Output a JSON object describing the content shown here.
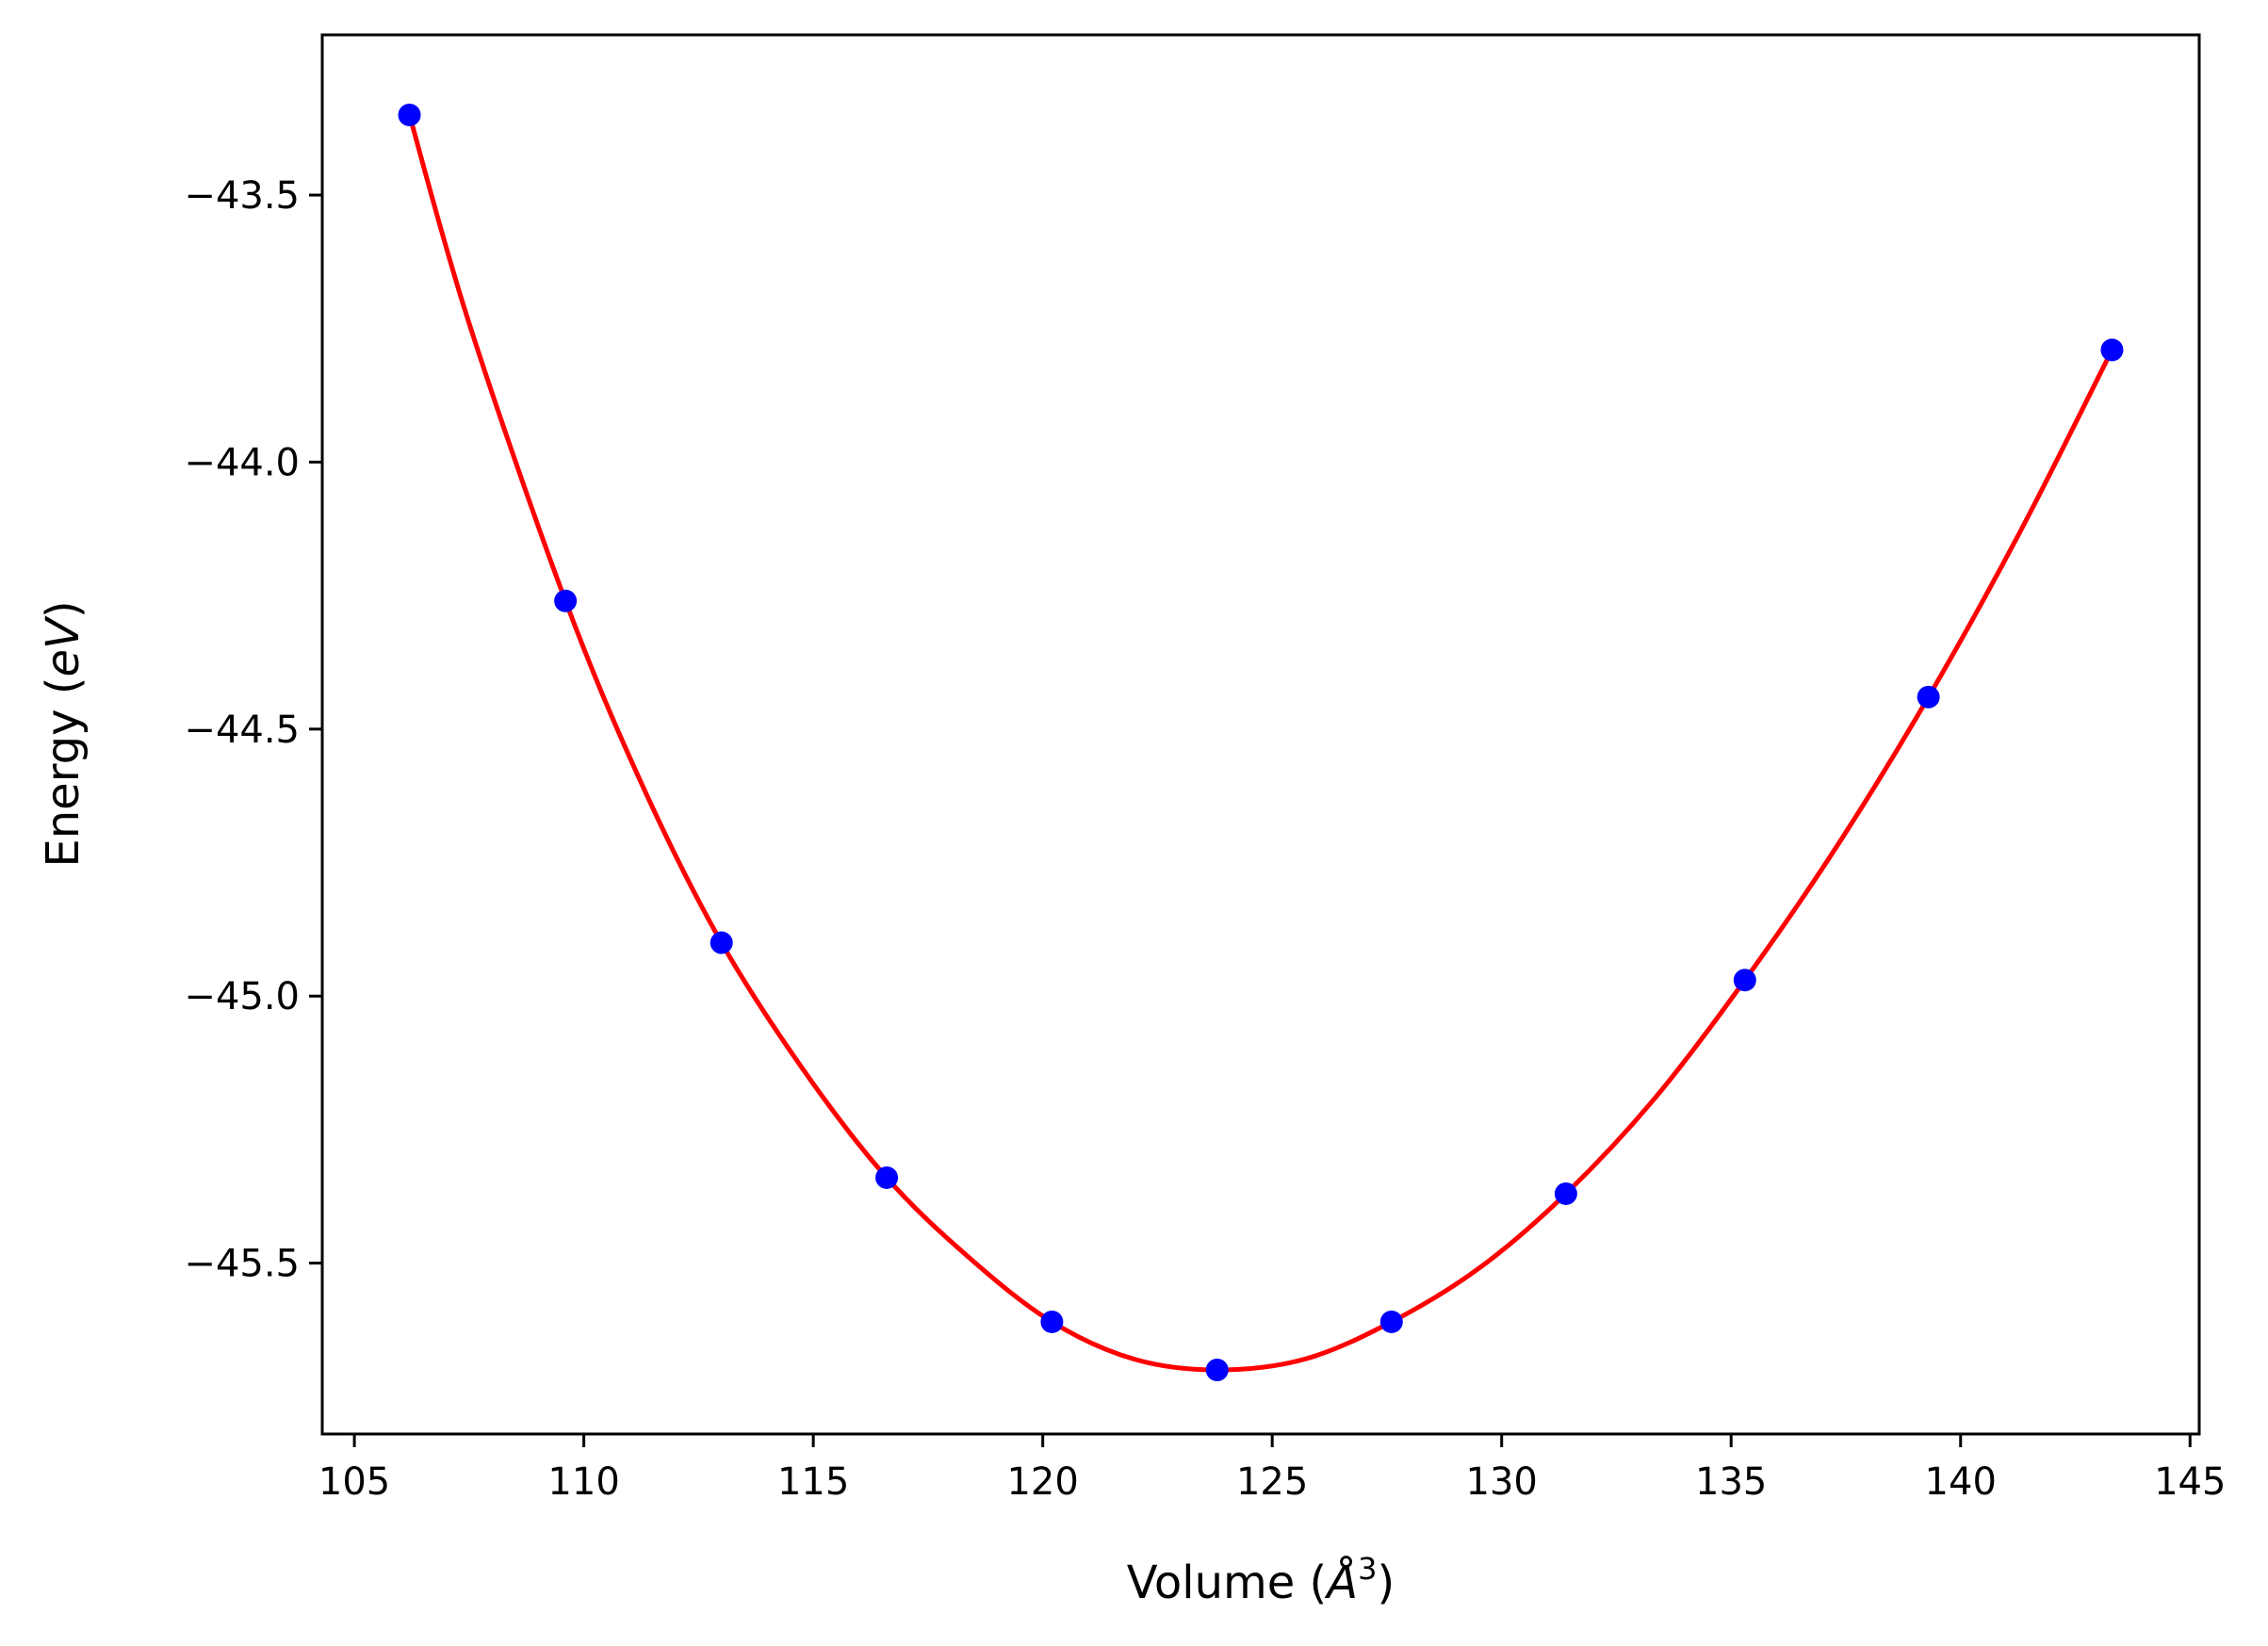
{
  "chart_data": {
    "type": "scatter",
    "title": "",
    "xlabel_main": "Volume (",
    "xlabel_unit": "Å",
    "xlabel_exp": "3",
    "xlabel_close": ")",
    "ylabel_main": "Energy (",
    "ylabel_unit": "eV",
    "ylabel_close": ")",
    "xlim": [
      104.3,
      145.2
    ],
    "ylim": [
      -45.82,
      -43.2
    ],
    "xticks": [
      105,
      110,
      115,
      120,
      125,
      130,
      135,
      140,
      145
    ],
    "xtick_labels": [
      "105",
      "110",
      "115",
      "120",
      "125",
      "130",
      "135",
      "140",
      "145"
    ],
    "yticks": [
      -43.5,
      -44.0,
      -44.5,
      -45.0,
      -45.5
    ],
    "ytick_labels": [
      "−43.5",
      "−44.0",
      "−44.5",
      "−45.0",
      "−45.5"
    ],
    "grid": false,
    "series": [
      {
        "kind": "points",
        "color": "#0000ff",
        "x": [
          106.2,
          109.6,
          113.0,
          116.6,
          120.2,
          123.8,
          127.6,
          131.4,
          135.3,
          139.3,
          143.3
        ],
        "y": [
          -43.35,
          -44.26,
          -44.9,
          -45.34,
          -45.61,
          -45.7,
          -45.61,
          -45.37,
          -44.97,
          -44.44,
          -43.79
        ]
      },
      {
        "kind": "fit-curve",
        "color": "#ff0000",
        "x": [
          106.2,
          107.5,
          109.6,
          111.3,
          113.0,
          114.8,
          116.6,
          118.4,
          120.2,
          122.0,
          123.8,
          125.7,
          127.6,
          129.5,
          131.4,
          133.35,
          135.3,
          137.3,
          139.3,
          141.3,
          143.3
        ],
        "y": [
          -43.35,
          -43.74,
          -44.26,
          -44.61,
          -44.9,
          -45.14,
          -45.34,
          -45.49,
          -45.61,
          -45.68,
          -45.7,
          -45.68,
          -45.61,
          -45.51,
          -45.37,
          -45.19,
          -44.97,
          -44.72,
          -44.44,
          -44.13,
          -43.79
        ]
      }
    ]
  }
}
